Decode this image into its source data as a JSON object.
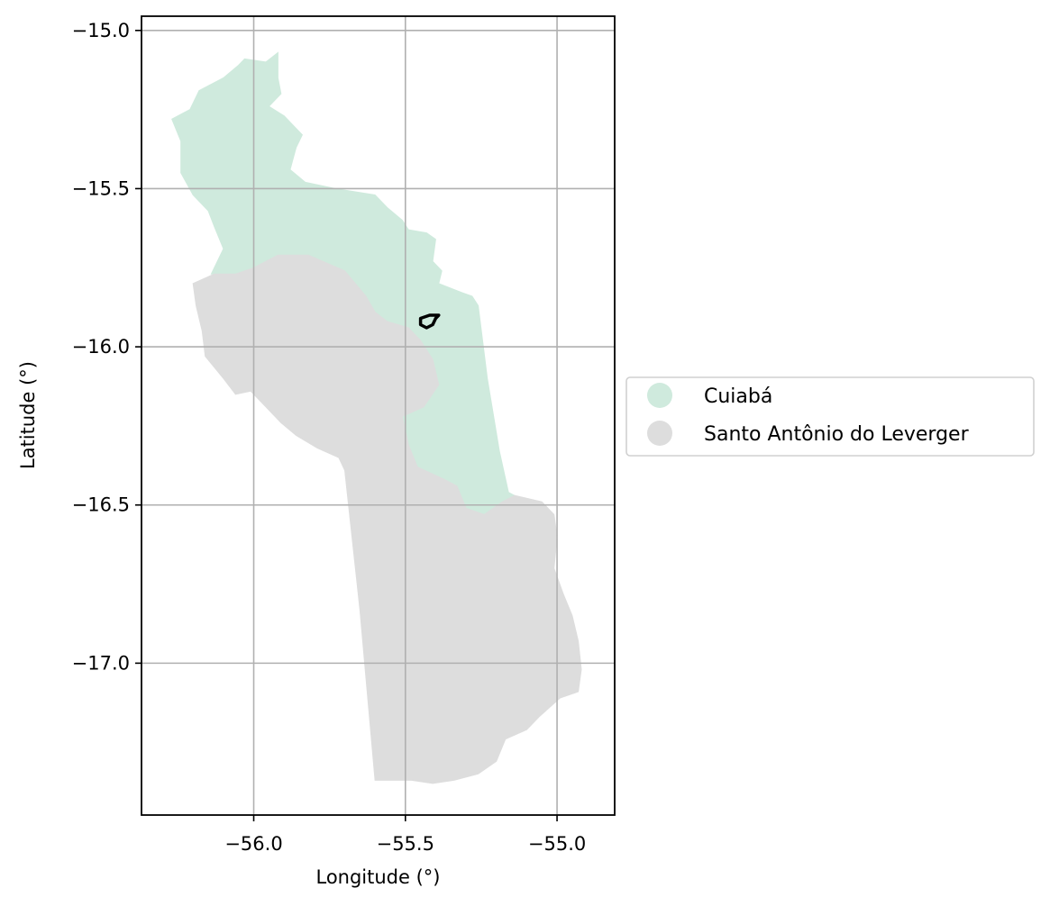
{
  "map": {
    "xlabel": "Longitude (°)",
    "ylabel": "Latitude (°)",
    "xlim": [
      -56.37,
      -54.81
    ],
    "ylim": [
      -17.48,
      -14.955
    ],
    "grid": true,
    "x_ticks": [
      {
        "value": -56.0,
        "label": "−56.0"
      },
      {
        "value": -55.5,
        "label": "−55.5"
      },
      {
        "value": -55.0,
        "label": "−55.0"
      }
    ],
    "y_ticks": [
      {
        "value": -15.0,
        "label": "−15.0"
      },
      {
        "value": -15.5,
        "label": "−15.5"
      },
      {
        "value": -16.0,
        "label": "−16.0"
      },
      {
        "value": -16.5,
        "label": "−16.5"
      },
      {
        "value": -17.0,
        "label": "−17.0"
      }
    ],
    "legend": {
      "placement": "center-left outside right of axes",
      "entries": [
        {
          "label": "Cuiabá",
          "color": "#cfeadd"
        },
        {
          "label": "Santo Antônio do Leverger",
          "color": "#dddddd"
        }
      ]
    },
    "regions": [
      {
        "name": "Cuiabá",
        "color": "#cfeadd",
        "outline_lonlat": [
          [
            -56.21,
            -15.25
          ],
          [
            -56.18,
            -15.19
          ],
          [
            -56.1,
            -15.15
          ],
          [
            -56.05,
            -15.11
          ],
          [
            -56.03,
            -15.09
          ],
          [
            -55.96,
            -15.1
          ],
          [
            -55.92,
            -15.07
          ],
          [
            -55.92,
            -15.15
          ],
          [
            -55.91,
            -15.2
          ],
          [
            -55.95,
            -15.24
          ],
          [
            -55.9,
            -15.27
          ],
          [
            -55.87,
            -15.3
          ],
          [
            -55.84,
            -15.33
          ],
          [
            -55.86,
            -15.37
          ],
          [
            -55.88,
            -15.44
          ],
          [
            -55.83,
            -15.48
          ],
          [
            -55.73,
            -15.5
          ],
          [
            -55.6,
            -15.52
          ],
          [
            -55.56,
            -15.56
          ],
          [
            -55.51,
            -15.6
          ],
          [
            -55.49,
            -15.63
          ],
          [
            -55.43,
            -15.64
          ],
          [
            -55.4,
            -15.66
          ],
          [
            -55.41,
            -15.73
          ],
          [
            -55.38,
            -15.76
          ],
          [
            -55.39,
            -15.8
          ],
          [
            -55.31,
            -15.83
          ],
          [
            -55.28,
            -15.84
          ],
          [
            -55.26,
            -15.87
          ],
          [
            -55.23,
            -16.1
          ],
          [
            -55.19,
            -16.33
          ],
          [
            -55.16,
            -16.46
          ],
          [
            -55.14,
            -16.47
          ],
          [
            -55.18,
            -16.49
          ],
          [
            -55.24,
            -16.53
          ],
          [
            -55.3,
            -16.51
          ],
          [
            -55.33,
            -16.44
          ],
          [
            -55.37,
            -16.42
          ],
          [
            -55.46,
            -16.38
          ],
          [
            -55.49,
            -16.31
          ],
          [
            -55.51,
            -16.22
          ],
          [
            -55.44,
            -16.19
          ],
          [
            -55.39,
            -16.12
          ],
          [
            -55.41,
            -16.04
          ],
          [
            -55.45,
            -15.98
          ],
          [
            -55.49,
            -15.94
          ],
          [
            -55.56,
            -15.92
          ],
          [
            -55.6,
            -15.89
          ],
          [
            -55.63,
            -15.84
          ],
          [
            -55.7,
            -15.76
          ],
          [
            -55.82,
            -15.71
          ],
          [
            -55.92,
            -15.71
          ],
          [
            -56.0,
            -15.75
          ],
          [
            -56.06,
            -15.77
          ],
          [
            -56.14,
            -15.77
          ],
          [
            -56.1,
            -15.69
          ],
          [
            -56.13,
            -15.62
          ],
          [
            -56.15,
            -15.57
          ],
          [
            -56.2,
            -15.52
          ],
          [
            -56.24,
            -15.45
          ],
          [
            -56.24,
            -15.35
          ],
          [
            -56.27,
            -15.28
          ]
        ]
      },
      {
        "name": "Santo Antônio do Leverger",
        "color": "#dddddd",
        "outline_lonlat": [
          [
            -56.13,
            -15.77
          ],
          [
            -56.06,
            -15.77
          ],
          [
            -56.0,
            -15.75
          ],
          [
            -55.92,
            -15.71
          ],
          [
            -55.82,
            -15.71
          ],
          [
            -55.7,
            -15.76
          ],
          [
            -55.63,
            -15.84
          ],
          [
            -55.6,
            -15.89
          ],
          [
            -55.56,
            -15.92
          ],
          [
            -55.49,
            -15.94
          ],
          [
            -55.45,
            -15.98
          ],
          [
            -55.41,
            -16.04
          ],
          [
            -55.39,
            -16.12
          ],
          [
            -55.44,
            -16.19
          ],
          [
            -55.51,
            -16.22
          ],
          [
            -55.49,
            -16.31
          ],
          [
            -55.46,
            -16.38
          ],
          [
            -55.37,
            -16.42
          ],
          [
            -55.33,
            -16.44
          ],
          [
            -55.3,
            -16.51
          ],
          [
            -55.24,
            -16.53
          ],
          [
            -55.18,
            -16.49
          ],
          [
            -55.14,
            -16.47
          ],
          [
            -55.05,
            -16.49
          ],
          [
            -55.01,
            -16.53
          ],
          [
            -55.0,
            -16.6
          ],
          [
            -55.01,
            -16.7
          ],
          [
            -54.98,
            -16.78
          ],
          [
            -54.95,
            -16.85
          ],
          [
            -54.93,
            -16.93
          ],
          [
            -54.92,
            -17.02
          ],
          [
            -54.93,
            -17.09
          ],
          [
            -54.99,
            -17.11
          ],
          [
            -55.06,
            -17.17
          ],
          [
            -55.1,
            -17.21
          ],
          [
            -55.17,
            -17.24
          ],
          [
            -55.2,
            -17.31
          ],
          [
            -55.26,
            -17.35
          ],
          [
            -55.34,
            -17.37
          ],
          [
            -55.41,
            -17.38
          ],
          [
            -55.48,
            -17.37
          ],
          [
            -55.6,
            -17.37
          ],
          [
            -55.65,
            -16.83
          ],
          [
            -55.7,
            -16.39
          ],
          [
            -55.72,
            -16.35
          ],
          [
            -55.79,
            -16.32
          ],
          [
            -55.86,
            -16.28
          ],
          [
            -55.91,
            -16.24
          ],
          [
            -55.96,
            -16.19
          ],
          [
            -56.01,
            -16.14
          ],
          [
            -56.06,
            -16.15
          ],
          [
            -56.1,
            -16.1
          ],
          [
            -56.16,
            -16.03
          ],
          [
            -56.17,
            -15.95
          ],
          [
            -56.19,
            -15.87
          ],
          [
            -56.2,
            -15.8
          ]
        ]
      }
    ],
    "highlight": {
      "stroke": "#000000",
      "outline_lonlat": [
        [
          -55.45,
          -15.91
        ],
        [
          -55.42,
          -15.9
        ],
        [
          -55.39,
          -15.9
        ],
        [
          -55.4,
          -15.91
        ],
        [
          -55.41,
          -15.93
        ],
        [
          -55.43,
          -15.94
        ],
        [
          -55.45,
          -15.93
        ]
      ]
    }
  }
}
